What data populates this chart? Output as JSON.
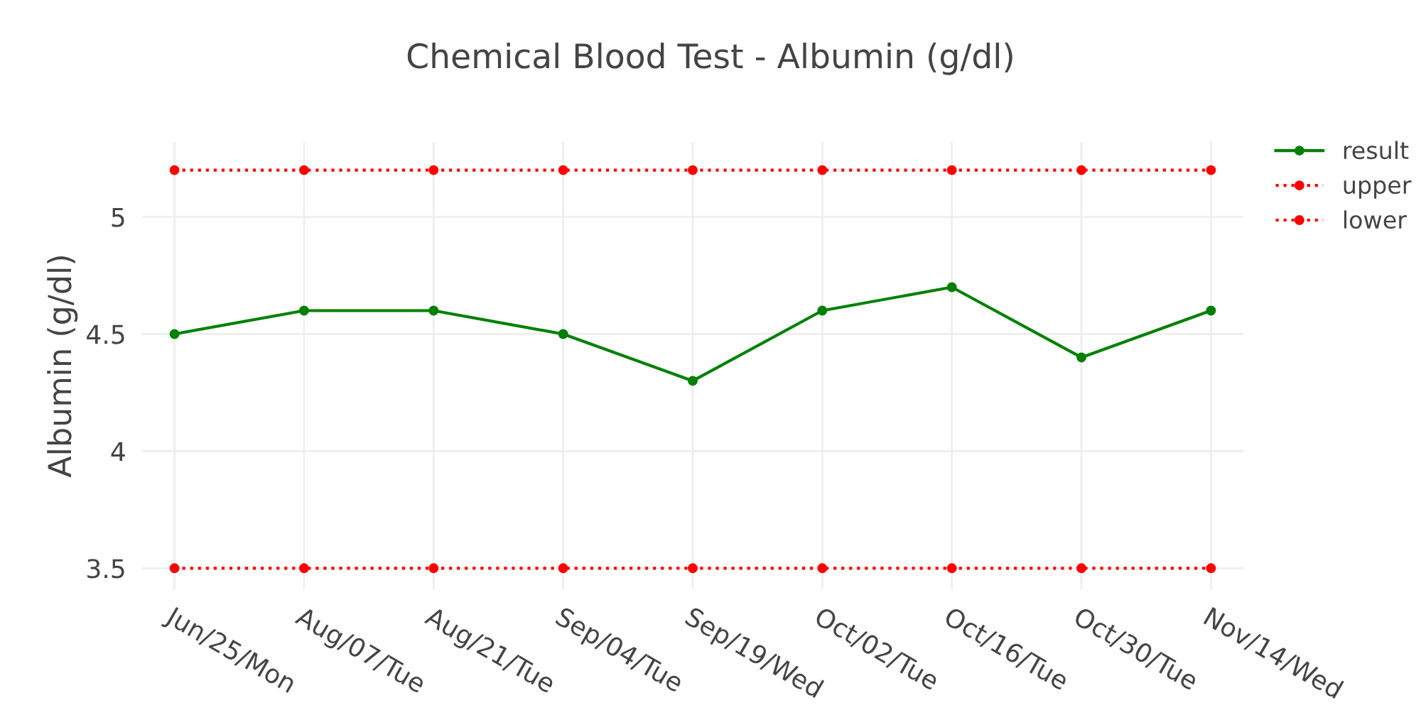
{
  "chart_data": {
    "type": "line",
    "title": "Chemical Blood Test - Albumin (g/dl)",
    "ylabel": "Albumin (g/dl)",
    "categories": [
      "Jun/25/Mon",
      "Aug/07/Tue",
      "Aug/21/Tue",
      "Sep/04/Tue",
      "Sep/19/Wed",
      "Oct/02/Tue",
      "Oct/16/Tue",
      "Oct/30/Tue",
      "Nov/14/Wed"
    ],
    "series": [
      {
        "name": "result",
        "color": "#008000",
        "line_style": "solid",
        "values": [
          4.5,
          4.6,
          4.6,
          4.5,
          4.3,
          4.6,
          4.7,
          4.4,
          4.6
        ]
      },
      {
        "name": "upper",
        "color": "#ff0000",
        "line_style": "dotted",
        "values": [
          5.2,
          5.2,
          5.2,
          5.2,
          5.2,
          5.2,
          5.2,
          5.2,
          5.2
        ]
      },
      {
        "name": "lower",
        "color": "#ff0000",
        "line_style": "dotted",
        "values": [
          3.5,
          3.5,
          3.5,
          3.5,
          3.5,
          3.5,
          3.5,
          3.5,
          3.5
        ]
      }
    ],
    "ylim": [
      3.41,
      5.32
    ],
    "yticks": [
      3.5,
      4,
      4.5,
      5
    ],
    "grid": true,
    "legend": "top right",
    "marker": "circle"
  }
}
